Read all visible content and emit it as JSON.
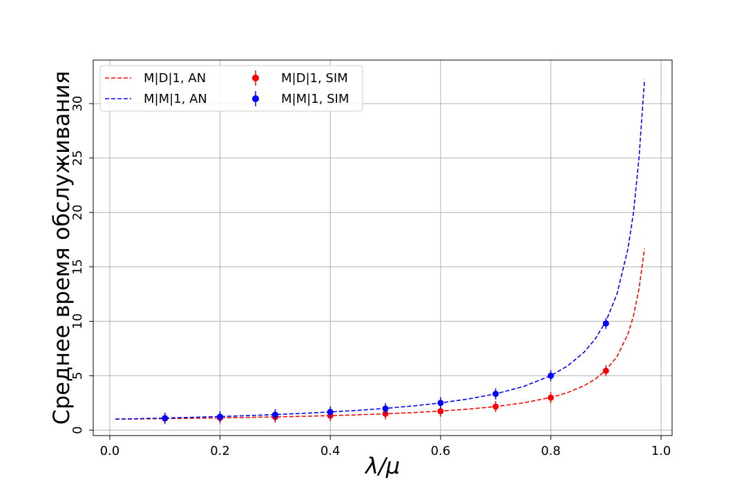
{
  "chart_data": {
    "type": "line",
    "xlabel": "λ/μ",
    "ylabel": "Среднее время обслуживания",
    "xlim": [
      -0.03,
      1.02
    ],
    "ylim": [
      -0.5,
      34.0
    ],
    "x_ticks": [
      0.0,
      0.2,
      0.4,
      0.6,
      0.8,
      1.0
    ],
    "x_tick_labels": [
      "0.0",
      "0.2",
      "0.4",
      "0.6",
      "0.8",
      "1.0"
    ],
    "y_ticks": [
      0,
      5,
      10,
      15,
      20,
      25,
      30
    ],
    "y_tick_labels": [
      "0",
      "5",
      "10",
      "15",
      "20",
      "25",
      "30"
    ],
    "grid": true,
    "legend_placement": "top-left",
    "series": [
      {
        "name": "M|D|1, AN",
        "kind": "analytic-dashed",
        "color": "#ff0000",
        "x": [
          0.01,
          0.05,
          0.1,
          0.15,
          0.2,
          0.25,
          0.3,
          0.35,
          0.4,
          0.45,
          0.5,
          0.55,
          0.6,
          0.65,
          0.7,
          0.75,
          0.8,
          0.83,
          0.86,
          0.88,
          0.9,
          0.92,
          0.94,
          0.95,
          0.96,
          0.97
        ],
        "y": [
          1.005,
          1.026,
          1.056,
          1.088,
          1.125,
          1.167,
          1.214,
          1.269,
          1.333,
          1.409,
          1.5,
          1.611,
          1.75,
          1.929,
          2.167,
          2.5,
          3.0,
          3.441,
          4.071,
          4.667,
          5.5,
          6.75,
          8.833,
          10.5,
          13.0,
          16.667
        ]
      },
      {
        "name": "M|M|1, AN",
        "kind": "analytic-dashed",
        "color": "#0000ff",
        "x": [
          0.01,
          0.05,
          0.1,
          0.15,
          0.2,
          0.25,
          0.3,
          0.35,
          0.4,
          0.45,
          0.5,
          0.55,
          0.6,
          0.65,
          0.7,
          0.75,
          0.8,
          0.83,
          0.86,
          0.88,
          0.9,
          0.92,
          0.94,
          0.95,
          0.96,
          0.97
        ],
        "y": [
          1.01,
          1.053,
          1.111,
          1.176,
          1.25,
          1.333,
          1.429,
          1.538,
          1.667,
          1.818,
          2.0,
          2.222,
          2.5,
          2.857,
          3.333,
          4.0,
          5.0,
          5.882,
          7.143,
          8.333,
          10.0,
          12.5,
          16.667,
          20.0,
          25.0,
          32.2
        ]
      },
      {
        "name": "M|D|1, SIM",
        "kind": "points",
        "color": "#ff0000",
        "x": [
          0.1,
          0.2,
          0.3,
          0.4,
          0.5,
          0.6,
          0.7,
          0.8,
          0.9
        ],
        "y": [
          1.06,
          1.12,
          1.2,
          1.33,
          1.5,
          1.74,
          2.16,
          2.98,
          5.45
        ]
      },
      {
        "name": "M|M|1, SIM",
        "kind": "points",
        "color": "#0000ff",
        "x": [
          0.1,
          0.2,
          0.3,
          0.4,
          0.5,
          0.6,
          0.7,
          0.8,
          0.9
        ],
        "y": [
          1.1,
          1.23,
          1.42,
          1.67,
          1.98,
          2.5,
          3.33,
          5.0,
          9.8
        ]
      }
    ]
  }
}
